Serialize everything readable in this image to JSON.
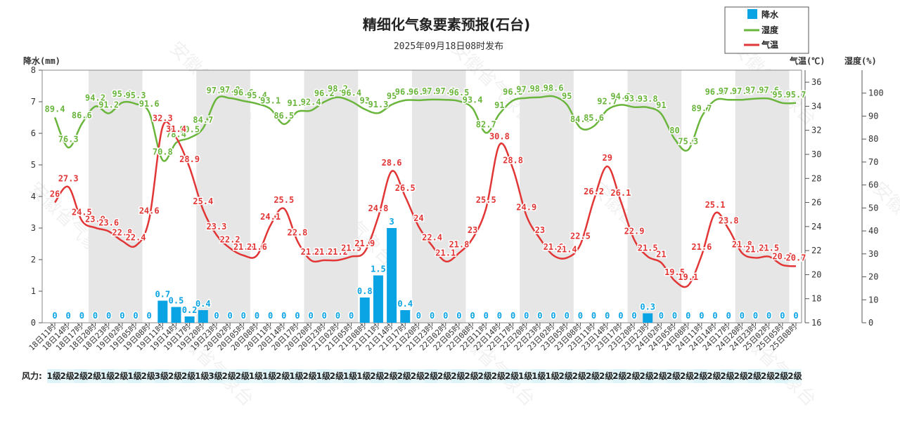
{
  "chart_data": {
    "type": "bar+line",
    "title": "精细化气象要素预报(石台)",
    "subtitle": "2025年09月18日08时发布",
    "watermark": "安徽省气象台",
    "colors": {
      "precip": "#0aa4e4",
      "humidity": "#6ab53c",
      "temperature": "#e23636",
      "shade": "#e6e6e6"
    },
    "legend": {
      "position": "top-right",
      "items": [
        {
          "name": "降水",
          "key": "precip",
          "shape": "square"
        },
        {
          "name": "湿度",
          "key": "humidity",
          "shape": "line"
        },
        {
          "name": "气温",
          "key": "temperature",
          "shape": "line"
        }
      ]
    },
    "axes": {
      "precip": {
        "label": "降水(mm)",
        "min": 0,
        "max": 8,
        "ticks": [
          "0",
          "1",
          "2",
          "3",
          "4",
          "5",
          "6",
          "7",
          "8"
        ]
      },
      "temperature": {
        "label": "气温(℃)",
        "min": 16,
        "max": 37,
        "ticks": [
          "16",
          "18",
          "20",
          "22",
          "24",
          "26",
          "28",
          "30",
          "32",
          "34",
          "36"
        ]
      },
      "humidity": {
        "label": "湿度(%)",
        "min": 0,
        "max": 110,
        "ticks": [
          "0",
          "10",
          "20",
          "30",
          "40",
          "50",
          "60",
          "70",
          "80",
          "90",
          "100"
        ]
      }
    },
    "x": [
      "18日11时",
      "18日14时",
      "18日17时",
      "18日20时",
      "18日23时",
      "19日02时",
      "19日05时",
      "19日08时",
      "19日11时",
      "19日14时",
      "19日17时",
      "19日20时",
      "19日23时",
      "20日02时",
      "20日05时",
      "20日08时",
      "20日11时",
      "20日14时",
      "20日17时",
      "20日20时",
      "20日23时",
      "21日02时",
      "21日05时",
      "21日08时",
      "21日11时",
      "21日14时",
      "21日17时",
      "21日20时",
      "21日23时",
      "22日02时",
      "22日05时",
      "22日08时",
      "22日11时",
      "22日14时",
      "22日17时",
      "22日20时",
      "22日23时",
      "23日02时",
      "23日05时",
      "23日08时",
      "23日11时",
      "23日14时",
      "23日17时",
      "23日20时",
      "23日23时",
      "24日02时",
      "24日05时",
      "24日08时",
      "24日11时",
      "24日14时",
      "24日17时",
      "24日20时",
      "24日23时",
      "25日02时",
      "25日05时",
      "25日08时"
    ],
    "series": [
      {
        "name": "降水",
        "key": "precip",
        "type": "bar",
        "values": [
          "0",
          "0",
          "0",
          "0",
          "0",
          "0",
          "0",
          "0",
          "0.7",
          "0.5",
          "0.2",
          "0.4",
          "0",
          "0",
          "0",
          "0",
          "0",
          "0",
          "0",
          "0",
          "0",
          "0",
          "0",
          "0.8",
          "1.5",
          "3",
          "0.4",
          "0",
          "0",
          "0",
          "0",
          "0",
          "0",
          "0",
          "0",
          "0",
          "0",
          "0",
          "0",
          "0",
          "0",
          "0",
          "0",
          "0",
          "0.3",
          "0",
          "0",
          "0",
          "0",
          "0",
          "0",
          "0",
          "0",
          "0",
          "0",
          "0"
        ]
      },
      {
        "name": "湿度",
        "key": "humidity",
        "type": "line",
        "values": [
          "89.4",
          "76.3",
          "86.6",
          "94.2",
          "91.2",
          "95.9",
          "95.3",
          "91.6",
          "70.8",
          "78.4",
          "80.5",
          "84.7",
          "97.5",
          "97.8",
          "96.6",
          "95.4",
          "93.1",
          "86.5",
          "91.9",
          "92.4",
          "96.2",
          "98.2",
          "96.4",
          "93",
          "91.3",
          "95",
          "96.9",
          "96.9",
          "97.2",
          "97.1",
          "96.5",
          "93.4",
          "82.7",
          "91",
          "96.8",
          "97.9",
          "98.2",
          "98.6",
          "95",
          "84.9",
          "85.6",
          "92.7",
          "94.9",
          "93.9",
          "93.8",
          "91",
          "80",
          "75.3",
          "89.7",
          "96.9",
          "97.1",
          "97.1",
          "97.6",
          "97.6",
          "95.7",
          "95.7"
        ]
      },
      {
        "name": "气温",
        "key": "temperature",
        "type": "line",
        "values": [
          "26",
          "27.3",
          "24.5",
          "23.9",
          "23.6",
          "22.8",
          "22.4",
          "24.6",
          "32.3",
          "31.4",
          "28.9",
          "25.4",
          "23.3",
          "22.2",
          "21.6",
          "21.6",
          "24.1",
          "25.5",
          "22.8",
          "21.2",
          "21.2",
          "21.2",
          "21.5",
          "21.9",
          "24.8",
          "28.6",
          "26.5",
          "24",
          "22.4",
          "21.1",
          "21.8",
          "23",
          "25.5",
          "30.8",
          "28.8",
          "24.9",
          "23",
          "21.6",
          "21.4",
          "22.5",
          "26.2",
          "29",
          "26.1",
          "22.9",
          "21.5",
          "21",
          "19.5",
          "19.1",
          "21.6",
          "25.1",
          "23.8",
          "21.8",
          "21.4",
          "21.5",
          "20.8",
          "20.7"
        ]
      }
    ],
    "shaded_bands": [
      {
        "from": "18日20时",
        "to": "19日05时"
      },
      {
        "from": "19日20时",
        "to": "20日05时"
      },
      {
        "from": "20日20时",
        "to": "21日05时"
      },
      {
        "from": "21日20时",
        "to": "22日05时"
      },
      {
        "from": "22日20时",
        "to": "23日05时"
      },
      {
        "from": "23日20时",
        "to": "24日05时"
      },
      {
        "from": "24日20时",
        "to": "25日05时"
      }
    ]
  },
  "wind": {
    "label": "风力:",
    "values": [
      "1级",
      "2级",
      "2级",
      "2级",
      "1级",
      "2级",
      "1级",
      "2级",
      "3级",
      "2级",
      "2级",
      "1级",
      "3级",
      "2级",
      "2级",
      "1级",
      "1级",
      "2级",
      "1级",
      "2级",
      "1级",
      "2级",
      "1级",
      "1级",
      "2级",
      "2级",
      "2级",
      "2级",
      "2级",
      "2级",
      "2级",
      "2级",
      "2级",
      "2级",
      "2级",
      "1级",
      "1级",
      "1级",
      "2级",
      "2级",
      "2级",
      "2级",
      "2级",
      "2级",
      "2级",
      "2级",
      "2级",
      "2级",
      "2级",
      "2级",
      "2级",
      "2级",
      "2级",
      "2级",
      "2级",
      "2级"
    ]
  }
}
